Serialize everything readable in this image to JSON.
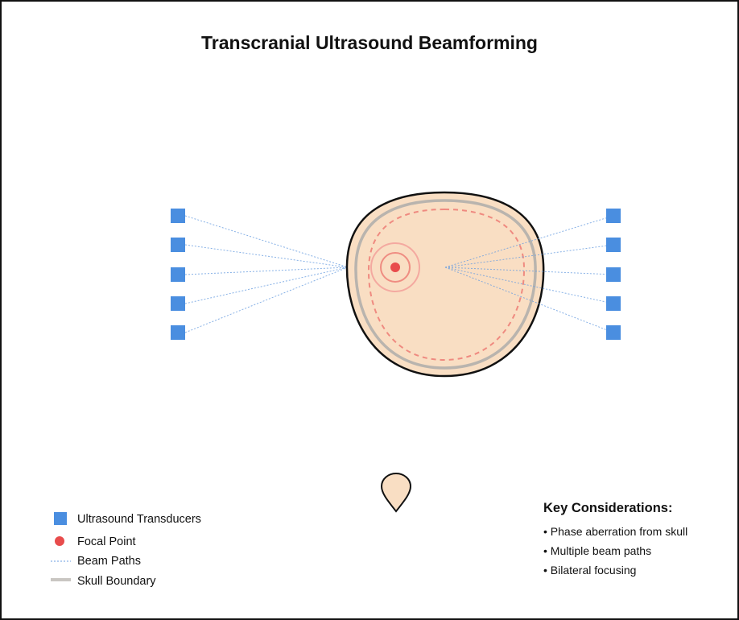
{
  "title": "Transcranial Ultrasound Beamforming",
  "legend": {
    "transducers": "Ultrasound Transducers",
    "focal_point": "Focal Point",
    "beam_paths": "Beam Paths",
    "skull_boundary": "Skull Boundary"
  },
  "key_considerations": {
    "title": "Key Considerations:",
    "items": [
      "• Phase aberration from skull",
      "• Multiple beam paths",
      "• Bilateral focusing"
    ]
  },
  "colors": {
    "transducer": "#4a8ee0",
    "focal": "#e84c4c",
    "beam": "#6a9ee0",
    "skull_fill": "#f9dec3",
    "skull_ring": "#b9b4ae",
    "outline": "#111111"
  },
  "icons": [
    "transducer-icon",
    "focal-point-icon",
    "beam-path-icon",
    "skull-boundary-icon"
  ]
}
